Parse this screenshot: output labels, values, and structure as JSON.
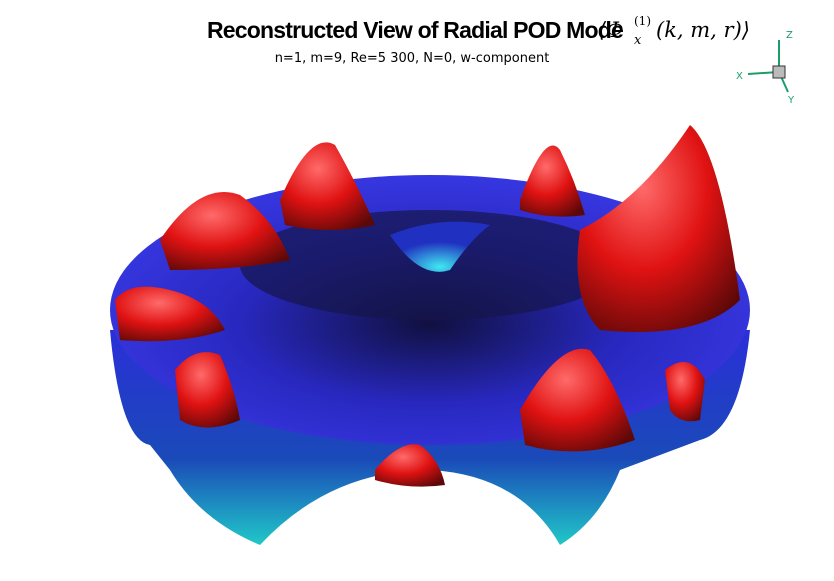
{
  "header": {
    "title": "Reconstructed View of Radial POD Mode",
    "math": {
      "open": "⟨Φ",
      "subscript": "x",
      "superscript": "(1)",
      "args": "(k, m, r)⟩"
    },
    "subtitle": "n=1, m=9, Re=5 300, N=0, w-component"
  },
  "axes_triad": {
    "z": "Z",
    "x": "X",
    "y": "Y"
  }
}
